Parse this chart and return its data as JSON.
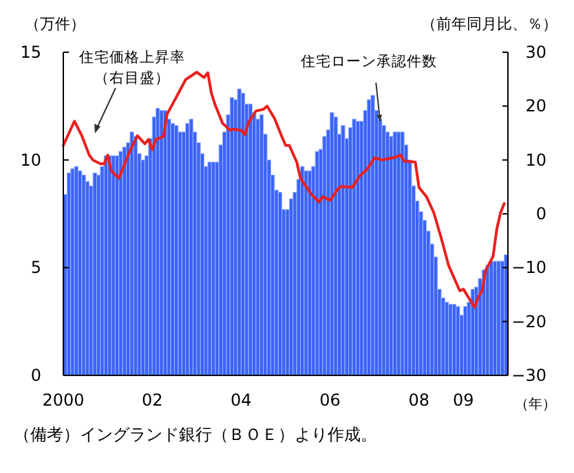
{
  "chart_data": {
    "type": "bar",
    "xlabel": "（年）",
    "ylabel": "（万件）",
    "y2label": "（前年同月比、％）",
    "xlim": [
      "2000-01",
      "2010-01"
    ],
    "xticks": [
      {
        "value": "2000-01",
        "label": "2000"
      },
      {
        "value": "2002-01",
        "label": "02"
      },
      {
        "value": "2004-01",
        "label": "04"
      },
      {
        "value": "2006-01",
        "label": "06"
      },
      {
        "value": "2008-01",
        "label": "08"
      },
      {
        "value": "2009-01",
        "label": "09"
      }
    ],
    "ylim": [
      0,
      15
    ],
    "yticks": [
      0,
      5,
      10,
      15
    ],
    "y2lim": [
      -30,
      30
    ],
    "y2ticks": [
      -30,
      -20,
      -10,
      0,
      10,
      20,
      30
    ],
    "grid": false,
    "series": [
      {
        "color": "#3b63f7",
        "x": [
          "2000-01",
          "2000-02",
          "2000-03",
          "2000-04",
          "2000-05",
          "2000-06",
          "2000-07",
          "2000-08",
          "2000-09",
          "2000-10",
          "2000-11",
          "2000-12",
          "2001-01",
          "2001-02",
          "2001-03",
          "2001-04",
          "2001-05",
          "2001-06",
          "2001-07",
          "2001-08",
          "2001-09",
          "2001-10",
          "2001-11",
          "2001-12",
          "2002-01",
          "2002-02",
          "2002-03",
          "2002-04",
          "2002-05",
          "2002-06",
          "2002-07",
          "2002-08",
          "2002-09",
          "2002-10",
          "2002-11",
          "2002-12",
          "2003-01",
          "2003-02",
          "2003-03",
          "2003-04",
          "2003-05",
          "2003-06",
          "2003-07",
          "2003-08",
          "2003-09",
          "2003-10",
          "2003-11",
          "2003-12",
          "2004-01",
          "2004-02",
          "2004-03",
          "2004-04",
          "2004-05",
          "2004-06",
          "2004-07",
          "2004-08",
          "2004-09",
          "2004-10",
          "2004-11",
          "2004-12",
          "2005-01",
          "2005-02",
          "2005-03",
          "2005-04",
          "2005-05",
          "2005-06",
          "2005-07",
          "2005-08",
          "2005-09",
          "2005-10",
          "2005-11",
          "2005-12",
          "2006-01",
          "2006-02",
          "2006-03",
          "2006-04",
          "2006-05",
          "2006-06",
          "2006-07",
          "2006-08",
          "2006-09",
          "2006-10",
          "2006-11",
          "2006-12",
          "2007-01",
          "2007-02",
          "2007-03",
          "2007-04",
          "2007-05",
          "2007-06",
          "2007-07",
          "2007-08",
          "2007-09",
          "2007-10",
          "2007-11",
          "2007-12",
          "2008-01",
          "2008-02",
          "2008-03",
          "2008-04",
          "2008-05",
          "2008-06",
          "2008-07",
          "2008-08",
          "2008-09",
          "2008-10",
          "2008-11",
          "2008-12",
          "2009-01",
          "2009-02",
          "2009-03",
          "2009-04",
          "2009-05",
          "2009-06",
          "2009-07",
          "2009-08",
          "2009-09",
          "2009-10",
          "2009-11",
          "2009-12"
        ],
        "values": [
          8.4,
          9.4,
          9.6,
          9.7,
          9.5,
          9.3,
          9.0,
          8.8,
          9.4,
          9.3,
          9.7,
          10.2,
          10.2,
          10.2,
          10.2,
          10.4,
          10.6,
          10.8,
          11.3,
          11.1,
          10.3,
          10.0,
          10.2,
          11.0,
          12.0,
          12.4,
          12.3,
          12.3,
          11.9,
          11.7,
          11.6,
          11.3,
          11.3,
          11.7,
          11.9,
          11.3,
          10.8,
          10.3,
          9.7,
          9.9,
          9.9,
          9.9,
          10.7,
          11.3,
          12.1,
          12.9,
          12.8,
          13.3,
          13.1,
          12.6,
          12.6,
          12.2,
          11.9,
          12.1,
          11.2,
          10.0,
          9.3,
          8.6,
          8.5,
          7.7,
          7.7,
          8.2,
          8.5,
          9.1,
          9.7,
          9.5,
          9.5,
          9.7,
          10.4,
          10.5,
          11.1,
          11.4,
          12.2,
          12.0,
          11.2,
          11.6,
          11.0,
          11.5,
          11.9,
          11.8,
          11.8,
          12.3,
          12.8,
          13.0,
          12.3,
          11.9,
          11.6,
          11.3,
          11.1,
          11.3,
          11.3,
          11.3,
          10.7,
          10.0,
          8.8,
          8.1,
          7.6,
          7.2,
          6.7,
          6.1,
          5.5,
          4.0,
          3.6,
          3.4,
          3.3,
          3.3,
          3.2,
          2.8,
          3.2,
          3.4,
          4.0,
          4.1,
          4.5,
          4.9,
          5.1,
          5.3,
          5.3,
          5.3,
          5.3,
          5.6
        ]
      },
      {
        "type": "line",
        "axis": "y2",
        "color": "#e8201e",
        "line_style": "solid",
        "marker": "none",
        "x": [
          "2000-01",
          "2000-04",
          "2000-06",
          "2000-08",
          "2000-09",
          "2000-11",
          "2000-12",
          "2001-01",
          "2001-02",
          "2001-04",
          "2001-07",
          "2001-09",
          "2001-11",
          "2001-12",
          "2002-01",
          "2002-02",
          "2002-04",
          "2002-05",
          "2002-08",
          "2002-10",
          "2003-01",
          "2003-03",
          "2003-04",
          "2003-05",
          "2003-06",
          "2003-08",
          "2003-10",
          "2003-11",
          "2004-01",
          "2004-02",
          "2004-03",
          "2004-05",
          "2004-07",
          "2004-08",
          "2004-10",
          "2004-12",
          "2005-01",
          "2005-02",
          "2005-04",
          "2005-05",
          "2005-08",
          "2005-10",
          "2005-11",
          "2006-01",
          "2006-03",
          "2006-04",
          "2006-07",
          "2006-09",
          "2006-11",
          "2007-01",
          "2007-03",
          "2007-06",
          "2007-08",
          "2007-09",
          "2007-12",
          "2008-01",
          "2008-03",
          "2008-05",
          "2008-07",
          "2008-09",
          "2008-12",
          "2009-01",
          "2009-04",
          "2009-05",
          "2009-06",
          "2009-07",
          "2009-09",
          "2009-10",
          "2009-11",
          "2009-12"
        ],
        "values": [
          12.7,
          17.2,
          14.5,
          10.9,
          10.0,
          9.3,
          9.3,
          10.9,
          7.9,
          6.6,
          11.7,
          14.5,
          13.0,
          13.8,
          11.9,
          13.8,
          14.3,
          18.5,
          22.3,
          24.9,
          26.3,
          25.3,
          26.2,
          22.3,
          20.2,
          16.8,
          15.5,
          15.7,
          15.5,
          14.7,
          17.0,
          19.1,
          19.4,
          20.0,
          17.7,
          14.3,
          12.7,
          12.7,
          9.6,
          6.6,
          3.6,
          2.2,
          3.2,
          2.5,
          4.5,
          5.1,
          4.9,
          7.0,
          8.3,
          10.4,
          10.0,
          10.4,
          10.9,
          9.8,
          9.6,
          4.9,
          3.2,
          0.2,
          -4.5,
          -9.6,
          -14.3,
          -14.0,
          -17.4,
          -15.5,
          -14.3,
          -10.5,
          -7.9,
          -2.8,
          0.2,
          1.9
        ]
      }
    ],
    "annotations": [
      "住宅価格上昇率",
      "（右目盛）",
      {
        "text": "住宅ローン承認件数",
        "x": "2007-02",
        "y": 11.8
      },
      "（備考）イングランド銀行（ＢＯＥ）より作成。"
    ]
  }
}
